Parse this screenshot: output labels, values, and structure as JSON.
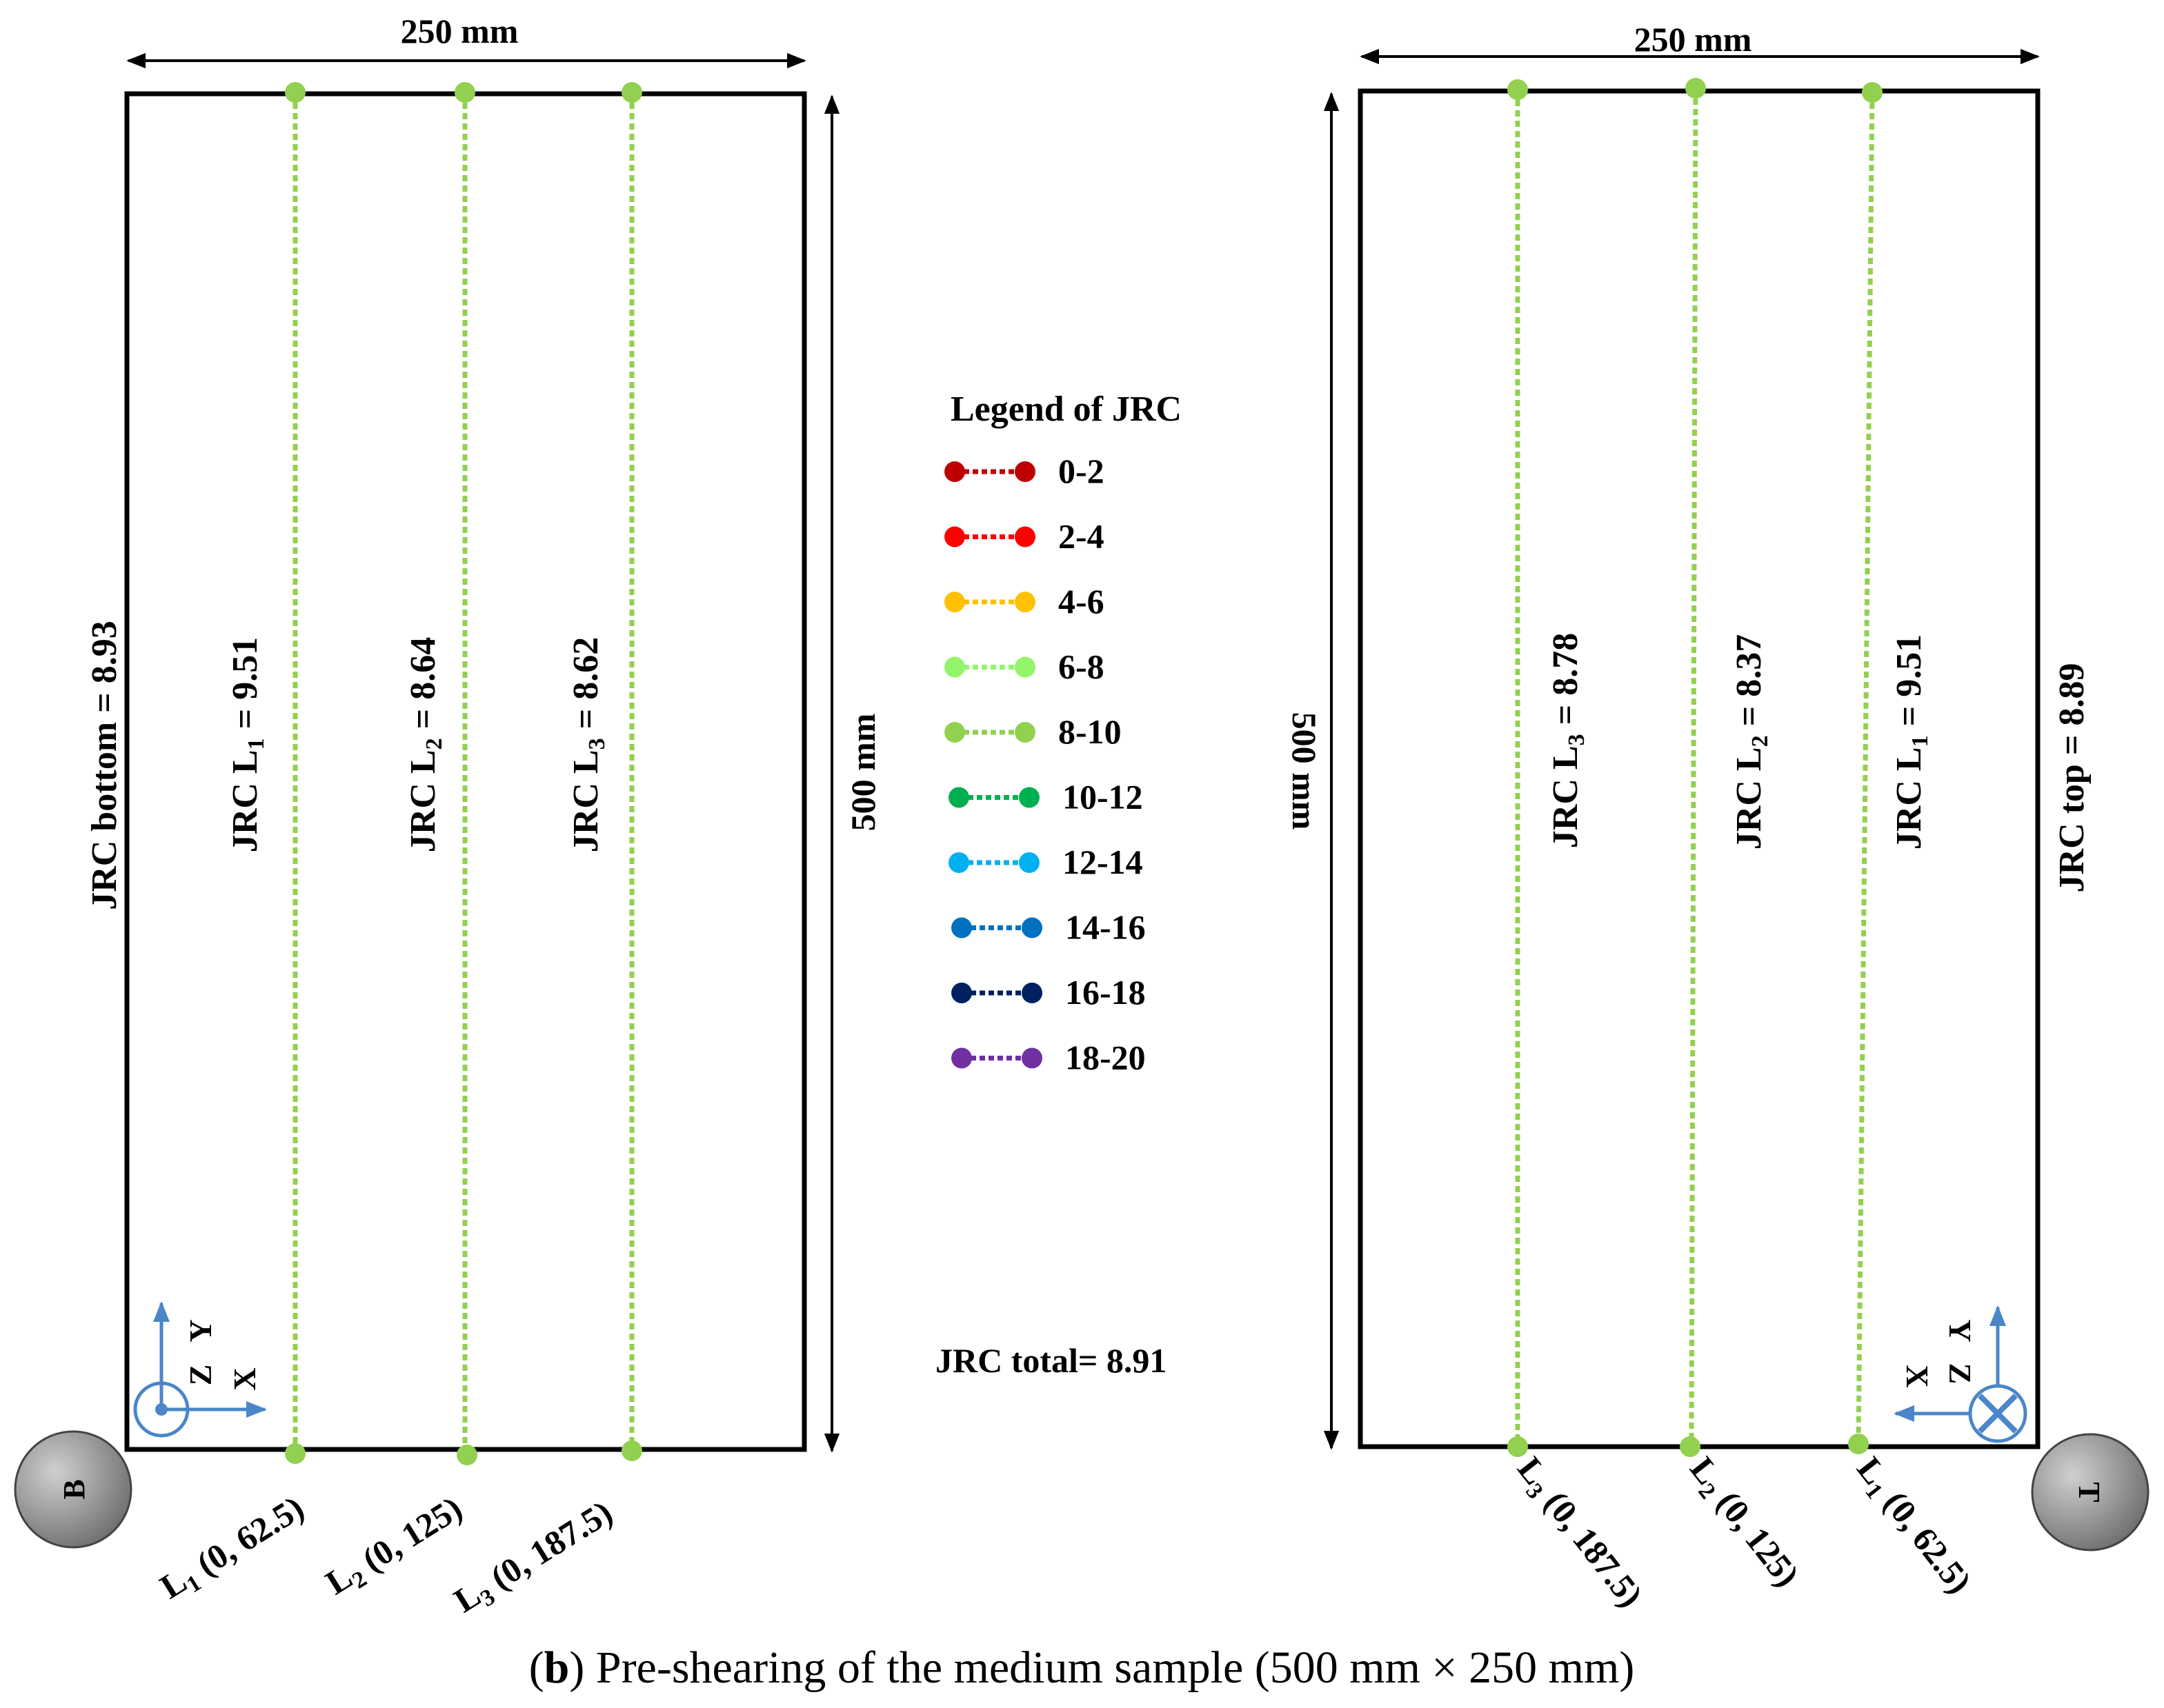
{
  "dimension_width": "250 mm",
  "dimension_height": "500 mm",
  "bottom_panel": {
    "marker": "B",
    "jrc_label_prefix": "JRC bottom = ",
    "jrc_value": "8.93",
    "lines": [
      {
        "name": "L",
        "sub": "1",
        "jrc_label": "JRC L",
        "jrc_value": " = 9.51",
        "coord": " (0, 62.5)"
      },
      {
        "name": "L",
        "sub": "2",
        "jrc_label": "JRC L",
        "jrc_value": " = 8.64",
        "coord": " (0, 125)"
      },
      {
        "name": "L",
        "sub": "3",
        "jrc_label": "JRC L",
        "jrc_value": " = 8.62",
        "coord": " (0, 187.5)"
      }
    ],
    "axes": {
      "x": "X",
      "y": "Y",
      "z": "Z"
    }
  },
  "top_panel": {
    "marker": "T",
    "jrc_label_prefix": "JRC top = ",
    "jrc_value": "8.89",
    "lines": [
      {
        "name": "L",
        "sub": "3",
        "jrc_label": "JRC L",
        "jrc_value": " =  8.78",
        "coord": " (0, 187.5)"
      },
      {
        "name": "L",
        "sub": "2",
        "jrc_label": "JRC L",
        "jrc_value": " =  8.37",
        "coord": " (0, 125)"
      },
      {
        "name": "L",
        "sub": "1",
        "jrc_label": "JRC L",
        "jrc_value": " =  9.51",
        "coord": " (0, 62.5)"
      }
    ],
    "axes": {
      "x": "X",
      "y": "Y",
      "z": "Z"
    }
  },
  "legend": {
    "title": "Legend of JRC",
    "items": [
      {
        "range": "0-2",
        "color": "#c00000"
      },
      {
        "range": "2-4",
        "color": "#ff0000"
      },
      {
        "range": "4-6",
        "color": "#ffc000"
      },
      {
        "range": "6-8",
        "color": "#92f56a"
      },
      {
        "range": "8-10",
        "color": "#92d050"
      },
      {
        "range": "10-12",
        "color": "#00b050"
      },
      {
        "range": "12-14",
        "color": "#00b0f0"
      },
      {
        "range": "14-16",
        "color": "#0070c0"
      },
      {
        "range": "16-18",
        "color": "#002060"
      },
      {
        "range": "18-20",
        "color": "#7030a0"
      }
    ]
  },
  "jrc_total": "JRC total= 8.91",
  "line_color": "#92d050",
  "axis_color": "#4a86c8",
  "caption": {
    "label": "b",
    "open": "(",
    "close": ")",
    "text": " Pre-shearing of the medium sample (500 mm × 250 mm)"
  }
}
